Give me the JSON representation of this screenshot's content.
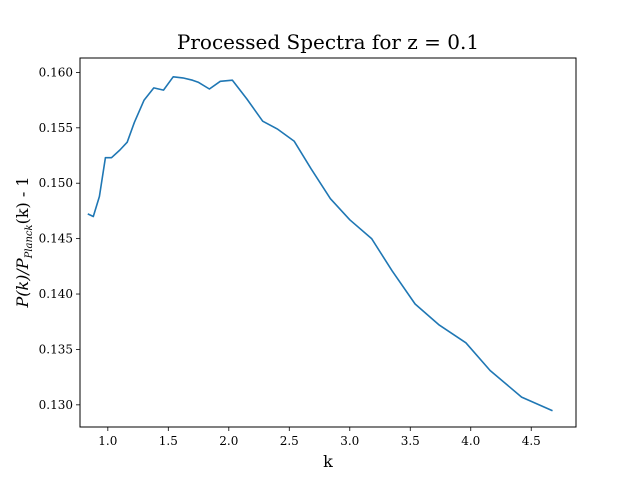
{
  "chart_data": {
    "type": "line",
    "title": "Processed Spectra for z = 0.1",
    "xlabel": "k",
    "ylabel": "P(k)/P_Planck(k) - 1",
    "ylabel_main": "P(k)/P",
    "ylabel_sub": "Planck",
    "ylabel_tail": "(k) - 1",
    "xlim": [
      0.77,
      4.87
    ],
    "ylim": [
      0.128,
      0.1613
    ],
    "xticks": [
      1.0,
      1.5,
      2.0,
      2.5,
      3.0,
      3.5,
      4.0,
      4.5
    ],
    "xtick_labels": [
      "1.0",
      "1.5",
      "2.0",
      "2.5",
      "3.0",
      "3.5",
      "4.0",
      "4.5"
    ],
    "yticks": [
      0.13,
      0.135,
      0.14,
      0.145,
      0.15,
      0.155,
      0.16
    ],
    "ytick_labels": [
      "0.130",
      "0.135",
      "0.140",
      "0.145",
      "0.150",
      "0.155",
      "0.160"
    ],
    "grid": false,
    "series": [
      {
        "color": "#1f77b4",
        "x": [
          0.84,
          0.88,
          0.93,
          0.98,
          1.03,
          1.1,
          1.16,
          1.22,
          1.3,
          1.38,
          1.46,
          1.54,
          1.62,
          1.7,
          1.75,
          1.84,
          1.93,
          2.03,
          2.15,
          2.28,
          2.4,
          2.54,
          2.68,
          2.84,
          3.0,
          3.18,
          3.35,
          3.54,
          3.74,
          3.96,
          4.16,
          4.42,
          4.67
        ],
        "y": [
          0.1472,
          0.147,
          0.1488,
          0.1523,
          0.1523,
          0.153,
          0.1537,
          0.1555,
          0.1575,
          0.1586,
          0.1584,
          0.1596,
          0.1595,
          0.1593,
          0.1591,
          0.1585,
          0.1592,
          0.1593,
          0.1576,
          0.1556,
          0.1549,
          0.1538,
          0.1513,
          0.1486,
          0.1467,
          0.145,
          0.1421,
          0.1391,
          0.1372,
          0.1356,
          0.1331,
          0.1307,
          0.1295
        ]
      }
    ]
  }
}
